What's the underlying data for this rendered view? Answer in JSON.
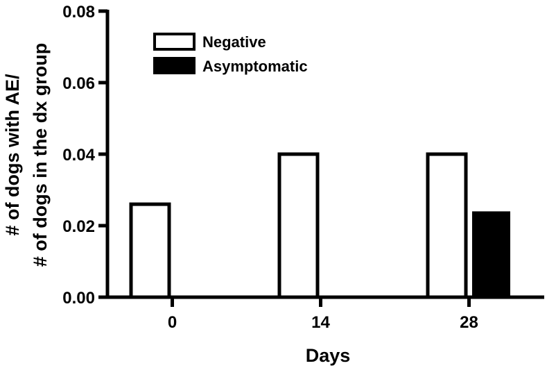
{
  "chart_data": {
    "type": "bar",
    "title": "",
    "xlabel": "Days",
    "ylabel_lines": [
      "# of dogs with AE/",
      "# of dogs in the dx group"
    ],
    "categories": [
      "0",
      "14",
      "28"
    ],
    "series": [
      {
        "name": "Negative",
        "values": [
          0.026,
          0.04,
          0.04
        ],
        "fill": "#ffffff",
        "stroke": "#000000"
      },
      {
        "name": "Asymptomatic",
        "values": [
          0,
          0,
          0.024
        ],
        "fill": "#000000",
        "stroke": "#000000"
      }
    ],
    "ylim": [
      0,
      0.08
    ],
    "yticks": [
      "0.00",
      "0.02",
      "0.04",
      "0.06",
      "0.08"
    ],
    "grid": false,
    "legend_position": "top-left"
  }
}
